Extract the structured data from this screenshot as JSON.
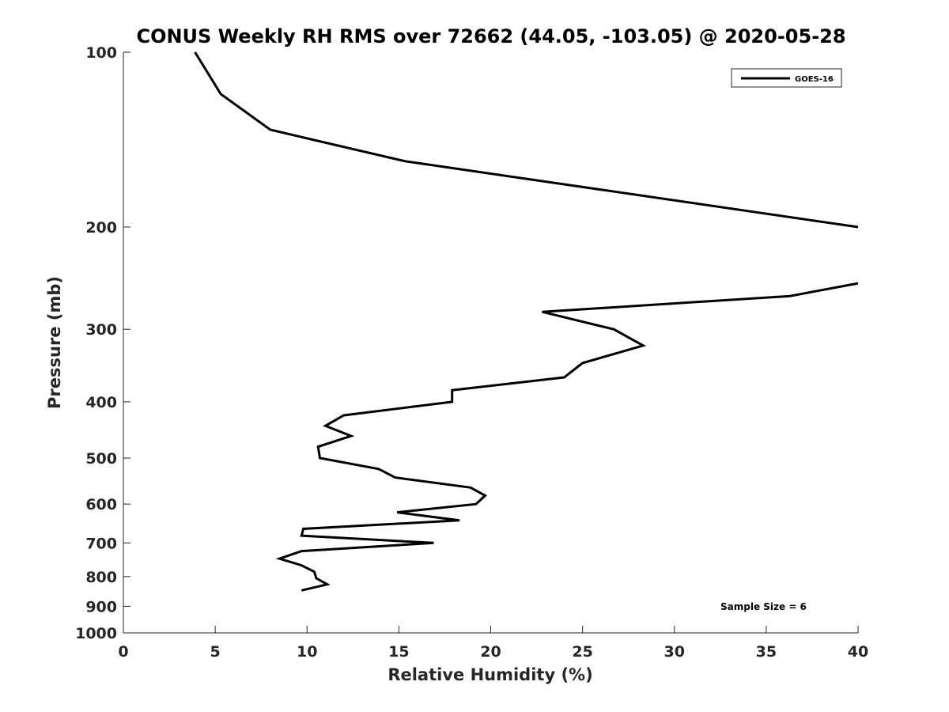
{
  "chart_data": {
    "type": "line",
    "title": "CONUS Weekly RH RMS over 72662 (44.05, -103.05) @ 2020-05-28",
    "xlabel": "Relative Humidity (%)",
    "ylabel": "Pressure (mb)",
    "xlim": [
      0,
      40
    ],
    "ylim": [
      1000,
      100
    ],
    "y_scale": "log",
    "y_reversed": true,
    "grid": false,
    "legend_position": "top-right",
    "x_ticks": [
      0,
      5,
      10,
      15,
      20,
      25,
      30,
      35,
      40
    ],
    "x_tick_labels": [
      "0",
      "5",
      "10",
      "15",
      "20",
      "25",
      "30",
      "35",
      "40"
    ],
    "y_ticks": [
      100,
      200,
      300,
      400,
      500,
      600,
      700,
      800,
      900,
      1000
    ],
    "y_tick_labels": [
      "100",
      "200",
      "300",
      "400",
      "500",
      "600",
      "700",
      "800",
      "900",
      "1000"
    ],
    "series": [
      {
        "name": "GOES-16",
        "color": "#000000",
        "x": [
          3.9,
          5.3,
          8.0,
          15.3,
          40.0,
          null,
          40.0,
          36.3,
          22.8,
          26.7,
          28.3,
          25.0,
          24.0,
          17.9,
          17.9,
          12.0,
          11.0,
          12.4,
          10.6,
          10.7,
          13.9,
          14.8,
          18.9,
          19.7,
          19.2,
          14.9,
          18.3,
          9.8,
          9.7,
          16.9,
          9.7,
          8.5,
          9.7,
          10.4,
          10.5,
          11.1,
          9.7
        ],
        "y": [
          100,
          118,
          136,
          154,
          200,
          null,
          250,
          263,
          280,
          300,
          320,
          343,
          363,
          382,
          400,
          422,
          440,
          458,
          478,
          500,
          522,
          540,
          562,
          580,
          600,
          620,
          640,
          662,
          680,
          700,
          723,
          745,
          765,
          785,
          805,
          825,
          845
        ]
      }
    ],
    "annotations": [
      "Sample Size = 6"
    ]
  }
}
